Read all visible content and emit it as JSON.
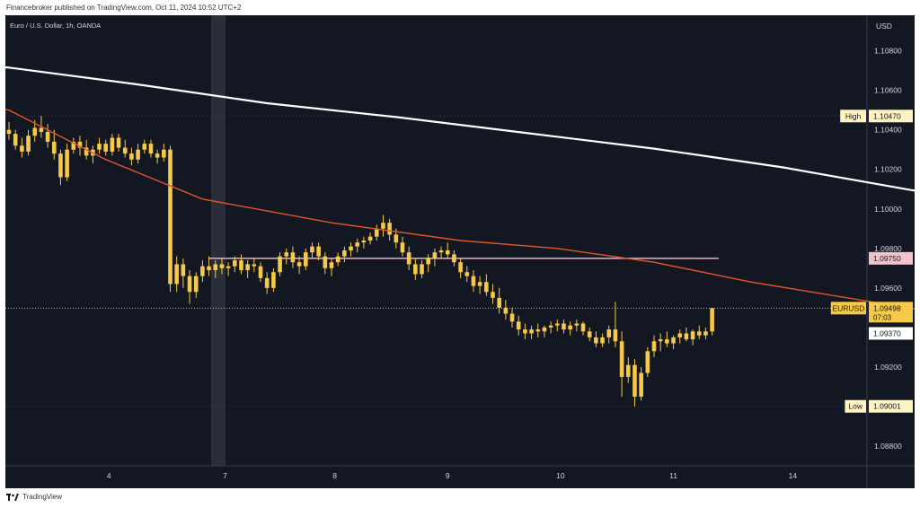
{
  "header": {
    "published": "Financebroker published on TradingView.com, Oct 11, 2024 10:52 UTC+2",
    "symbol_desc": "Euro / U.S. Dollar, 1h, OANDA",
    "currency": "USD"
  },
  "footer": {
    "brand": "TradingView"
  },
  "colors": {
    "background": "#131722",
    "candle": "#F7C948",
    "ema_fast": "#E0562A",
    "ema_slow": "#FFFFFF",
    "level_line": "#D9A5AE",
    "axis_text": "#D1D4DC"
  },
  "chart_data": {
    "type": "candlestick",
    "symbol": "EURUSD",
    "interval": "1h",
    "x_tick_labels": [
      "4",
      "7",
      "8",
      "9",
      "10",
      "11",
      "14"
    ],
    "y_tick_labels": [
      "1.10800",
      "1.10600",
      "1.10400",
      "1.10200",
      "1.10000",
      "1.09800",
      "1.09600",
      "1.09200",
      "1.08800"
    ],
    "ylim": [
      1.087,
      1.1098
    ],
    "price_tags": [
      {
        "label": "High",
        "value": "1.10470",
        "price": 1.1047,
        "style": "light"
      },
      {
        "label": "",
        "value": "1.09750",
        "price": 1.0975,
        "style": "pink"
      },
      {
        "label": "EURUSD",
        "value": "1.09498",
        "sub": "07:03",
        "price": 1.09498,
        "style": "yellow"
      },
      {
        "label": "",
        "value": "1.09370",
        "price": 1.0937,
        "style": "white"
      },
      {
        "label": "Low",
        "value": "1.09001",
        "price": 1.09001,
        "style": "light"
      }
    ],
    "horizontal_level": 1.0975,
    "ema_slow": [
      [
        -45,
        1.1109
      ],
      [
        -25,
        1.10775
      ],
      [
        0,
        1.10715
      ],
      [
        20,
        1.1063
      ],
      [
        40,
        1.10535
      ],
      [
        60,
        1.10465
      ],
      [
        80,
        1.10385
      ],
      [
        100,
        1.10305
      ],
      [
        120,
        1.1021
      ],
      [
        140,
        1.10095
      ],
      [
        160,
        1.0998
      ]
    ],
    "ema_fast": [
      [
        -45,
        1.1084
      ],
      [
        -30,
        1.1069
      ],
      [
        -10,
        1.1055
      ],
      [
        0,
        1.105
      ],
      [
        15,
        1.1025
      ],
      [
        30,
        1.1005
      ],
      [
        50,
        1.0993
      ],
      [
        70,
        1.0984
      ],
      [
        85,
        1.098
      ],
      [
        100,
        1.0973
      ],
      [
        115,
        1.0963
      ],
      [
        130,
        1.0955
      ],
      [
        145,
        1.0947
      ],
      [
        160,
        1.0944
      ]
    ],
    "candles": [
      [
        1.104,
        1.1044,
        1.1035,
        1.1038
      ],
      [
        1.1038,
        1.104,
        1.103,
        1.1032
      ],
      [
        1.1032,
        1.1036,
        1.1026,
        1.1029
      ],
      [
        1.1029,
        1.104,
        1.1027,
        1.1037
      ],
      [
        1.1037,
        1.1045,
        1.1034,
        1.1041
      ],
      [
        1.1041,
        1.1047,
        1.1036,
        1.1039
      ],
      [
        1.1039,
        1.1043,
        1.1031,
        1.1034
      ],
      [
        1.1034,
        1.104,
        1.1025,
        1.1028
      ],
      [
        1.1028,
        1.103,
        1.1012,
        1.1016
      ],
      [
        1.1016,
        1.1033,
        1.1014,
        1.103
      ],
      [
        1.103,
        1.1036,
        1.1028,
        1.1034
      ],
      [
        1.1034,
        1.1037,
        1.1027,
        1.1031
      ],
      [
        1.1031,
        1.1035,
        1.1025,
        1.1027
      ],
      [
        1.1027,
        1.1032,
        1.1023,
        1.103
      ],
      [
        1.103,
        1.1036,
        1.1028,
        1.1033
      ],
      [
        1.1033,
        1.1035,
        1.1027,
        1.1029
      ],
      [
        1.1029,
        1.1038,
        1.1027,
        1.1036
      ],
      [
        1.1036,
        1.1038,
        1.1029,
        1.1031
      ],
      [
        1.1031,
        1.1035,
        1.1026,
        1.1028
      ],
      [
        1.1028,
        1.1031,
        1.1022,
        1.1025
      ],
      [
        1.1025,
        1.1033,
        1.1023,
        1.103
      ],
      [
        1.103,
        1.1035,
        1.1028,
        1.1033
      ],
      [
        1.1033,
        1.1035,
        1.1026,
        1.1028
      ],
      [
        1.1028,
        1.103,
        1.1023,
        1.1026
      ],
      [
        1.1026,
        1.1033,
        1.1024,
        1.103
      ],
      [
        1.103,
        1.1032,
        1.0958,
        1.0962
      ],
      [
        1.0962,
        1.0976,
        1.0958,
        1.0972
      ],
      [
        1.0972,
        1.0975,
        1.096,
        1.0966
      ],
      [
        1.0966,
        1.0969,
        1.0952,
        1.0958
      ],
      [
        1.0958,
        1.0968,
        1.0955,
        1.0966
      ],
      [
        1.0966,
        1.0974,
        1.0963,
        1.0971
      ],
      [
        1.0971,
        1.0976,
        1.0966,
        1.0969
      ],
      [
        1.0969,
        1.0974,
        1.0965,
        1.0972
      ],
      [
        1.0972,
        1.0975,
        1.0967,
        1.097
      ],
      [
        1.097,
        1.0973,
        1.0966,
        1.0971
      ],
      [
        1.0971,
        1.0976,
        1.0968,
        1.0974
      ],
      [
        1.0974,
        1.0977,
        1.0967,
        1.0969
      ],
      [
        1.0969,
        1.0974,
        1.0965,
        1.0972
      ],
      [
        1.0972,
        1.0975,
        1.0968,
        1.0971
      ],
      [
        1.0971,
        1.0973,
        1.0963,
        1.0965
      ],
      [
        1.0965,
        1.0968,
        1.0957,
        1.096
      ],
      [
        1.096,
        1.097,
        1.0958,
        1.0968
      ],
      [
        1.0968,
        1.0978,
        1.0966,
        1.0976
      ],
      [
        1.0976,
        1.098,
        1.0972,
        1.0978
      ],
      [
        1.0978,
        1.0981,
        1.097,
        1.0973
      ],
      [
        1.0973,
        1.0976,
        1.0967,
        1.0971
      ],
      [
        1.0971,
        1.098,
        1.0969,
        1.0978
      ],
      [
        1.0978,
        1.0983,
        1.0975,
        1.0981
      ],
      [
        1.0981,
        1.0983,
        1.0974,
        1.0976
      ],
      [
        1.0976,
        1.0978,
        1.0967,
        1.097
      ],
      [
        1.097,
        1.0975,
        1.0966,
        1.0973
      ],
      [
        1.0973,
        1.0978,
        1.0971,
        1.0976
      ],
      [
        1.0976,
        1.0981,
        1.0973,
        1.0979
      ],
      [
        1.0979,
        1.0983,
        1.0976,
        1.0981
      ],
      [
        1.0981,
        1.0985,
        1.0978,
        1.0983
      ],
      [
        1.0983,
        1.0986,
        1.098,
        1.0984
      ],
      [
        1.0984,
        1.0988,
        1.0982,
        1.0986
      ],
      [
        1.0986,
        1.0992,
        1.0984,
        1.099
      ],
      [
        1.099,
        1.0997,
        1.0986,
        1.0993
      ],
      [
        1.0993,
        1.0995,
        1.0984,
        1.0987
      ],
      [
        1.0987,
        1.099,
        1.098,
        1.0983
      ],
      [
        1.0983,
        1.0986,
        1.0976,
        1.0978
      ],
      [
        1.0978,
        1.0981,
        1.0969,
        1.0972
      ],
      [
        1.0972,
        1.0975,
        1.0964,
        1.0967
      ],
      [
        1.0967,
        1.0974,
        1.0965,
        1.0972
      ],
      [
        1.0972,
        1.0977,
        1.0968,
        1.0975
      ],
      [
        1.0975,
        1.098,
        1.0971,
        1.0978
      ],
      [
        1.0978,
        1.0981,
        1.0975,
        1.0979
      ],
      [
        1.0979,
        1.0983,
        1.0975,
        1.0977
      ],
      [
        1.0977,
        1.0979,
        1.0971,
        1.0973
      ],
      [
        1.0973,
        1.0975,
        1.0965,
        1.0968
      ],
      [
        1.0968,
        1.0971,
        1.0963,
        1.0966
      ],
      [
        1.0966,
        1.0969,
        1.0958,
        1.0961
      ],
      [
        1.0961,
        1.0966,
        1.0957,
        1.0963
      ],
      [
        1.0963,
        1.0967,
        1.0956,
        1.0958
      ],
      [
        1.0958,
        1.0962,
        1.0952,
        1.0955
      ],
      [
        1.0955,
        1.096,
        1.0947,
        1.095
      ],
      [
        1.095,
        1.0954,
        1.0944,
        1.0947
      ],
      [
        1.0947,
        1.095,
        1.094,
        1.0943
      ],
      [
        1.0943,
        1.0946,
        1.0936,
        1.0939
      ],
      [
        1.0939,
        1.0942,
        1.0934,
        1.0937
      ],
      [
        1.0937,
        1.0941,
        1.0934,
        1.0939
      ],
      [
        1.0939,
        1.0942,
        1.0935,
        1.0938
      ],
      [
        1.0938,
        1.0941,
        1.0935,
        1.094
      ],
      [
        1.094,
        1.0943,
        1.0937,
        1.0941
      ],
      [
        1.0941,
        1.0944,
        1.0938,
        1.0942
      ],
      [
        1.0942,
        1.0944,
        1.0937,
        1.0939
      ],
      [
        1.0939,
        1.0943,
        1.0936,
        1.0941
      ],
      [
        1.0941,
        1.0944,
        1.0938,
        1.0942
      ],
      [
        1.0942,
        1.0943,
        1.0936,
        1.0938
      ],
      [
        1.0938,
        1.094,
        1.0933,
        1.0935
      ],
      [
        1.0935,
        1.0938,
        1.093,
        1.0932
      ],
      [
        1.0932,
        1.0937,
        1.093,
        1.0935
      ],
      [
        1.0935,
        1.0941,
        1.0932,
        1.0939
      ],
      [
        1.0939,
        1.0953,
        1.093,
        1.0933
      ],
      [
        1.0933,
        1.0938,
        1.0905,
        1.0915
      ],
      [
        1.0915,
        1.0925,
        1.0912,
        1.0921
      ],
      [
        1.0921,
        1.0924,
        1.09,
        1.0905
      ],
      [
        1.0905,
        1.092,
        1.0903,
        1.0917
      ],
      [
        1.0917,
        1.093,
        1.0915,
        1.0928
      ],
      [
        1.0928,
        1.0936,
        1.0925,
        1.0933
      ],
      [
        1.0933,
        1.0937,
        1.0928,
        1.0934
      ],
      [
        1.0934,
        1.0938,
        1.093,
        1.0932
      ],
      [
        1.0932,
        1.0936,
        1.0929,
        1.0935
      ],
      [
        1.0935,
        1.0939,
        1.0932,
        1.0937
      ],
      [
        1.0937,
        1.094,
        1.0933,
        1.0934
      ],
      [
        1.0934,
        1.0939,
        1.0931,
        1.0938
      ],
      [
        1.0938,
        1.0941,
        1.0934,
        1.0936
      ],
      [
        1.0936,
        1.094,
        1.0934,
        1.0938
      ],
      [
        1.0938,
        1.095,
        1.0936,
        1.09498
      ]
    ]
  }
}
